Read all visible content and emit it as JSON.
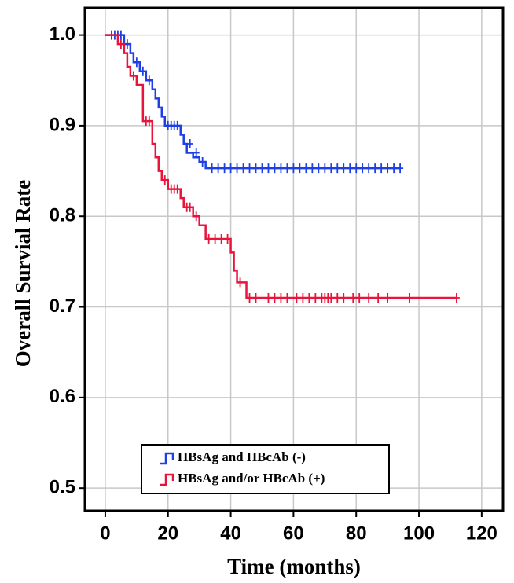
{
  "chart_data": {
    "type": "survival",
    "xlabel": "Time (months)",
    "ylabel": "Overall Survial Rate",
    "xlim": [
      -6.5,
      126.8
    ],
    "ylim": [
      0.475,
      1.03
    ],
    "xticks": [
      0,
      20,
      40,
      60,
      80,
      100,
      120
    ],
    "yticks": [
      0.5,
      0.6,
      0.7,
      0.8,
      0.9,
      {
        "value": 1,
        "label": "1.0"
      }
    ],
    "grid": true,
    "legend": "lower center",
    "series": [
      {
        "name": "HBsAg and HBcAb (-)",
        "color": "#1f3fe6",
        "x": [
          0,
          6,
          8,
          9,
          11,
          13,
          15,
          16,
          17,
          18,
          19,
          24,
          25,
          26,
          28,
          30,
          32,
          94
        ],
        "values": [
          1,
          0.99,
          0.98,
          0.97,
          0.96,
          0.95,
          0.94,
          0.93,
          0.92,
          0.91,
          0.9,
          0.89,
          0.88,
          0.87,
          0.865,
          0.86,
          0.853,
          0.853
        ],
        "censor_x": [
          2,
          3,
          4,
          5,
          7,
          10,
          12,
          14,
          20,
          21,
          22,
          23,
          27,
          29,
          31,
          34,
          36,
          38,
          40,
          42,
          44,
          46,
          48,
          50,
          52,
          54,
          56,
          58,
          60,
          62,
          64,
          66,
          68,
          70,
          72,
          74,
          76,
          78,
          80,
          82,
          84,
          86,
          88,
          90,
          92,
          94
        ],
        "censor_y": [
          1,
          1,
          1,
          1,
          0.99,
          0.97,
          0.96,
          0.95,
          0.9,
          0.9,
          0.9,
          0.9,
          0.88,
          0.87,
          0.86,
          0.853,
          0.853,
          0.853,
          0.853,
          0.853,
          0.853,
          0.853,
          0.853,
          0.853,
          0.853,
          0.853,
          0.853,
          0.853,
          0.853,
          0.853,
          0.853,
          0.853,
          0.853,
          0.853,
          0.853,
          0.853,
          0.853,
          0.853,
          0.853,
          0.853,
          0.853,
          0.853,
          0.853,
          0.853,
          0.853,
          0.853
        ]
      },
      {
        "name": "HBsAg and/or HBcAb (+)",
        "color": "#e8143c",
        "x": [
          0,
          4,
          6,
          7,
          8,
          10,
          12,
          15,
          16,
          17,
          18,
          20,
          24,
          25,
          28,
          30,
          32,
          40,
          41,
          42,
          45,
          112
        ],
        "values": [
          1,
          0.99,
          0.98,
          0.965,
          0.955,
          0.945,
          0.905,
          0.88,
          0.865,
          0.85,
          0.84,
          0.83,
          0.82,
          0.81,
          0.8,
          0.79,
          0.775,
          0.76,
          0.74,
          0.727,
          0.71,
          0.71
        ],
        "censor_x": [
          5,
          9,
          13,
          14,
          19,
          21,
          22,
          23,
          26,
          27,
          29,
          33,
          35,
          37,
          39,
          43,
          46,
          48,
          52,
          54,
          56,
          58,
          61,
          63,
          65,
          67,
          69,
          70,
          71,
          72,
          74,
          76,
          79,
          81,
          84,
          87,
          90,
          97,
          112
        ],
        "censor_y": [
          0.99,
          0.955,
          0.905,
          0.905,
          0.84,
          0.83,
          0.83,
          0.83,
          0.81,
          0.81,
          0.8,
          0.775,
          0.775,
          0.775,
          0.775,
          0.727,
          0.71,
          0.71,
          0.71,
          0.71,
          0.71,
          0.71,
          0.71,
          0.71,
          0.71,
          0.71,
          0.71,
          0.71,
          0.71,
          0.71,
          0.71,
          0.71,
          0.71,
          0.71,
          0.71,
          0.71,
          0.71,
          0.71,
          0.71
        ]
      }
    ]
  }
}
